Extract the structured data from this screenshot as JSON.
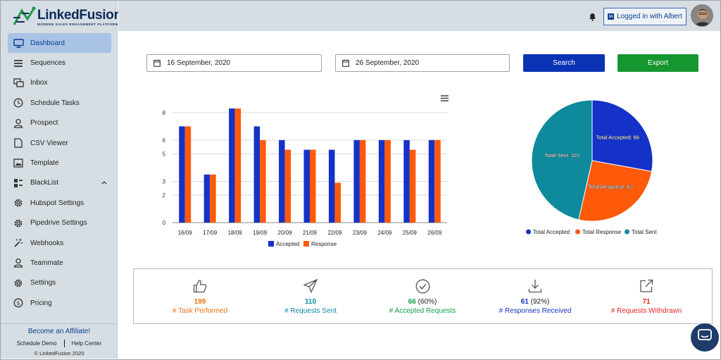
{
  "brand": {
    "title": "LinkedFusion",
    "tagline": "MODERN SALES ENGAGEMENT PLATFORM"
  },
  "sidebar": {
    "items": [
      {
        "label": "Dashboard",
        "icon": "monitor-icon",
        "active": true
      },
      {
        "label": "Sequences",
        "icon": "list-icon"
      },
      {
        "label": "Inbox",
        "icon": "inbox-icon"
      },
      {
        "label": "Schedule Tasks",
        "icon": "clock-icon"
      },
      {
        "label": "Prospect",
        "icon": "user-icon"
      },
      {
        "label": "CSV Viewer",
        "icon": "document-icon"
      },
      {
        "label": "Template",
        "icon": "image-icon"
      },
      {
        "label": "BlackList",
        "icon": "blacklist-icon"
      },
      {
        "label": "Hubspot Settings",
        "icon": "gear-icon"
      },
      {
        "label": "Pipedrive Settings",
        "icon": "gear-icon"
      },
      {
        "label": "Webhooks",
        "icon": "magic-wand-icon"
      },
      {
        "label": "Teammate",
        "icon": "user-icon"
      },
      {
        "label": "Settings",
        "icon": "gear-icon"
      },
      {
        "label": "Pricing",
        "icon": "dollar-icon"
      }
    ],
    "affiliate": "Become an Affiliate!",
    "schedule_demo": "Schedule Demo",
    "help_center": "Help Center",
    "copyright": "© LinkedFusion 2020"
  },
  "header": {
    "logged_in": "Logged in with Albert",
    "linkedin_badge": "in"
  },
  "filters": {
    "start_date": "16 September, 2020",
    "end_date": "26 September, 2020",
    "search_label": "Search",
    "export_label": "Export"
  },
  "colors": {
    "accepted": "#1432c8",
    "response": "#ff5a0a",
    "sent": "#0f8a9c",
    "search_btn": "#0a32b4",
    "export_btn": "#15962f",
    "stat_task": "#f07012",
    "stat_sent": "#0a8aa0",
    "stat_accepted": "#13a04a",
    "stat_received": "#1432c8",
    "stat_withdrawn": "#e32424"
  },
  "chart_data": [
    {
      "type": "bar",
      "categories": [
        "16/09",
        "17/09",
        "18/09",
        "19/09",
        "20/09",
        "21/09",
        "22/09",
        "23/09",
        "24/09",
        "25/09",
        "26/09"
      ],
      "series": [
        {
          "name": "Accepted",
          "values": [
            7,
            3.5,
            8.3,
            7,
            6,
            5.3,
            5.3,
            6,
            6,
            6,
            6
          ]
        },
        {
          "name": "Response",
          "values": [
            7,
            3.5,
            8.3,
            6,
            5.3,
            5.3,
            2.9,
            6,
            6,
            5.3,
            6
          ]
        }
      ],
      "yticks": [
        0,
        2,
        3,
        5,
        6,
        8
      ],
      "ylim": [
        0,
        8.3
      ],
      "legend": "bottom"
    },
    {
      "type": "pie",
      "labels": [
        "Total Accepted",
        "Total Response",
        "Total Sent"
      ],
      "values": [
        66,
        61,
        110
      ],
      "legend": "bottom"
    }
  ],
  "stats": [
    {
      "value": "199",
      "pct": "",
      "label": "# Task Performed",
      "icon": "thumbs-up-icon"
    },
    {
      "value": "110",
      "pct": "",
      "label": "# Requests Sent",
      "icon": "paper-plane-icon"
    },
    {
      "value": "66",
      "pct": "(60%)",
      "label": "# Accepted Requests",
      "icon": "check-circle-icon"
    },
    {
      "value": "61",
      "pct": "(92%)",
      "label": "# Responses Received",
      "icon": "download-icon"
    },
    {
      "value": "71",
      "pct": "",
      "label": "# Requests Withdrawn",
      "icon": "external-link-icon"
    }
  ]
}
